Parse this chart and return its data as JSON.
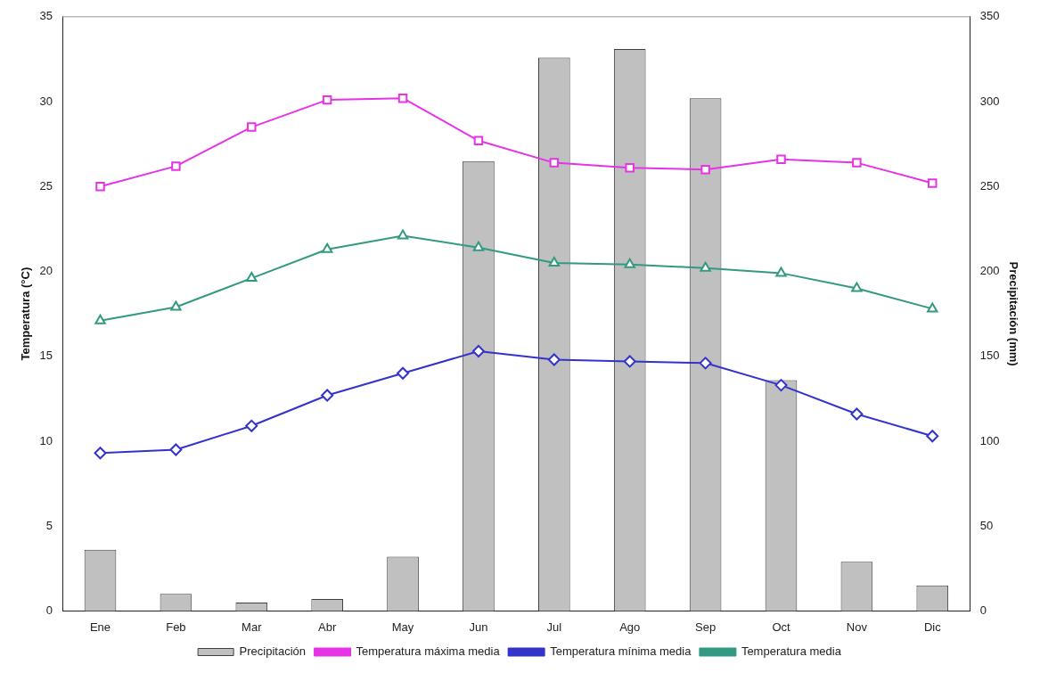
{
  "chart_data": {
    "type": "line",
    "categories": [
      "Ene",
      "Feb",
      "Mar",
      "Abr",
      "May",
      "Jun",
      "Jul",
      "Ago",
      "Sep",
      "Oct",
      "Nov",
      "Dic"
    ],
    "ylabel": "Temperatura (°C)",
    "y2label": "Precipitación (mm)",
    "ylim": [
      0,
      35
    ],
    "yticks": [
      0,
      5,
      10,
      15,
      20,
      25,
      30,
      35
    ],
    "y2lim": [
      0,
      350
    ],
    "y2ticks": [
      0,
      50,
      100,
      150,
      200,
      250,
      300,
      350
    ],
    "grid": false,
    "legend": "bottom",
    "series": [
      {
        "name": "Precipitación",
        "type": "bar",
        "axis": "y2",
        "color": "#c0c0c0",
        "values": [
          36,
          10,
          5,
          7,
          32,
          265,
          326,
          331,
          302,
          136,
          29,
          15
        ]
      },
      {
        "name": "Temperatura máxima media",
        "color": "#e633e6",
        "marker": "square",
        "values": [
          25.0,
          26.2,
          28.5,
          30.1,
          30.2,
          27.7,
          26.4,
          26.1,
          26.0,
          26.6,
          26.4,
          25.2
        ]
      },
      {
        "name": "Temperatura mínima media",
        "color": "#3333cc",
        "marker": "diamond",
        "values": [
          9.3,
          9.5,
          10.9,
          12.7,
          14.0,
          15.3,
          14.8,
          14.7,
          14.6,
          13.3,
          11.6,
          10.3
        ]
      },
      {
        "name": "Temperatura media",
        "color": "#339980",
        "marker": "triangle",
        "values": [
          17.1,
          17.9,
          19.6,
          21.3,
          22.1,
          21.4,
          20.5,
          20.4,
          20.2,
          19.9,
          19.0,
          17.8
        ]
      }
    ]
  }
}
